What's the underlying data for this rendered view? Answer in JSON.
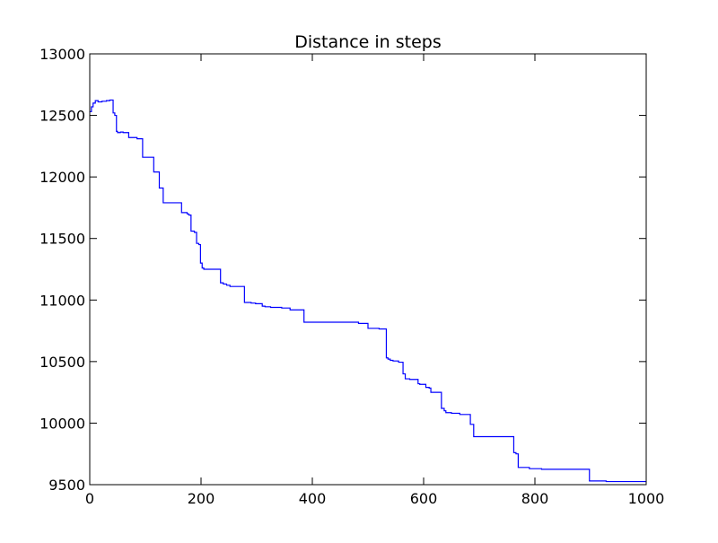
{
  "chart_data": {
    "type": "line",
    "title": "Distance in steps",
    "xlabel": "",
    "ylabel": "",
    "xlim": [
      0,
      1000
    ],
    "ylim": [
      9500,
      13000
    ],
    "xticks": [
      0,
      200,
      400,
      600,
      800,
      1000
    ],
    "yticks": [
      9500,
      10000,
      10500,
      11000,
      11500,
      12000,
      12500,
      13000
    ],
    "grid": false,
    "legend": "none",
    "line_color": "#0000ff",
    "series": [
      {
        "step": true,
        "x": [
          0,
          3,
          6,
          10,
          15,
          22,
          30,
          36,
          42,
          45,
          48,
          50,
          55,
          60,
          70,
          75,
          85,
          95,
          100,
          110,
          115,
          118,
          125,
          132,
          140,
          155,
          165,
          175,
          178,
          182,
          188,
          192,
          196,
          199,
          202,
          205,
          215,
          235,
          240,
          246,
          252,
          262,
          278,
          290,
          298,
          310,
          315,
          325,
          345,
          360,
          375,
          385,
          392,
          420,
          440,
          462,
          483,
          500,
          515,
          520,
          533,
          536,
          540,
          545,
          555,
          563,
          567,
          575,
          590,
          593,
          604,
          610,
          613,
          625,
          632,
          637,
          640,
          650,
          665,
          681,
          684,
          690,
          695,
          720,
          735,
          748,
          762,
          766,
          770,
          790,
          812,
          880,
          898,
          928,
          952,
          1000
        ],
        "y": [
          12530,
          12570,
          12600,
          12620,
          12610,
          12615,
          12620,
          12625,
          12520,
          12500,
          12370,
          12360,
          12365,
          12360,
          12320,
          12320,
          12310,
          12160,
          12160,
          12160,
          12040,
          12040,
          11910,
          11790,
          11790,
          11790,
          11710,
          11700,
          11690,
          11560,
          11550,
          11460,
          11450,
          11300,
          11260,
          11250,
          11250,
          11140,
          11130,
          11120,
          11110,
          11110,
          10980,
          10975,
          10970,
          10950,
          10945,
          10940,
          10935,
          10920,
          10920,
          10820,
          10820,
          10820,
          10820,
          10820,
          10810,
          10770,
          10770,
          10765,
          10530,
          10520,
          10510,
          10505,
          10495,
          10400,
          10360,
          10355,
          10320,
          10315,
          10290,
          10285,
          10250,
          10250,
          10120,
          10100,
          10085,
          10080,
          10070,
          10070,
          9990,
          9890,
          9890,
          9890,
          9890,
          9890,
          9760,
          9750,
          9640,
          9630,
          9625,
          9625,
          9530,
          9525,
          9525,
          9525
        ]
      }
    ]
  }
}
